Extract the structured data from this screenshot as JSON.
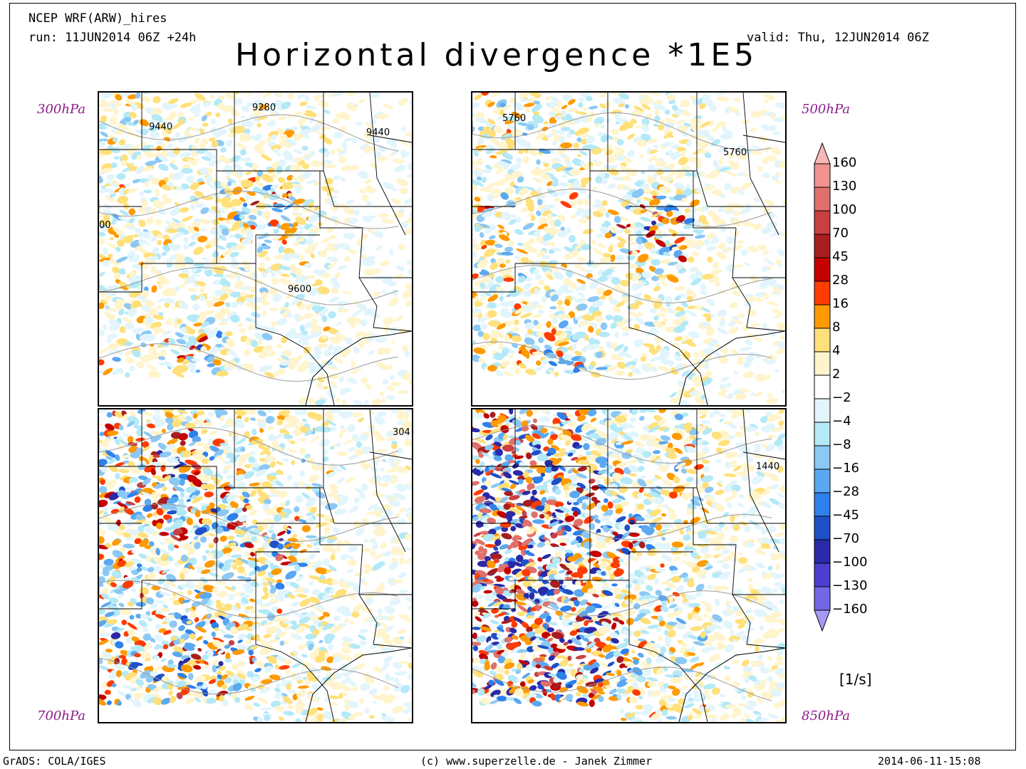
{
  "header": {
    "model": "NCEP WRF(ARW)_hires",
    "run": "run: 11JUN2014 06Z +24h",
    "valid": "valid: Thu, 12JUN2014 06Z",
    "title": "Horizontal divergence *1E5"
  },
  "panels": [
    {
      "level": "300hPa",
      "contour_labels": [
        "9280",
        "9440",
        "9440",
        "9600",
        "00"
      ]
    },
    {
      "level": "500hPa",
      "contour_labels": [
        "5760",
        "5760"
      ]
    },
    {
      "level": "700hPa",
      "contour_labels": [
        "304"
      ]
    },
    {
      "level": "850hPa",
      "contour_labels": [
        "1440"
      ]
    }
  ],
  "colorbar": {
    "units": "[1/s]",
    "labels": [
      "160",
      "130",
      "100",
      "70",
      "45",
      "28",
      "16",
      "8",
      "4",
      "2",
      "−2",
      "−4",
      "−8",
      "−16",
      "−28",
      "−45",
      "−70",
      "−100",
      "−130",
      "−160"
    ],
    "colors": [
      "#fbb8b8",
      "#f0928f",
      "#e0706b",
      "#c94040",
      "#a81e1e",
      "#c40000",
      "#ff3c00",
      "#ff9a00",
      "#ffe07a",
      "#fff4cc",
      "#ffffff",
      "#e2f5fc",
      "#b4e9f7",
      "#8cc8f4",
      "#5aa8f0",
      "#2e80ea",
      "#1e50c8",
      "#2a2aa8",
      "#4c3ed0",
      "#7268e6",
      "#a49af4"
    ]
  },
  "footer": {
    "left": "GrADS: COLA/IGES",
    "center": "(c) www.superzelle.de - Janek Zimmer",
    "right": "2014-06-11-15:08"
  }
}
